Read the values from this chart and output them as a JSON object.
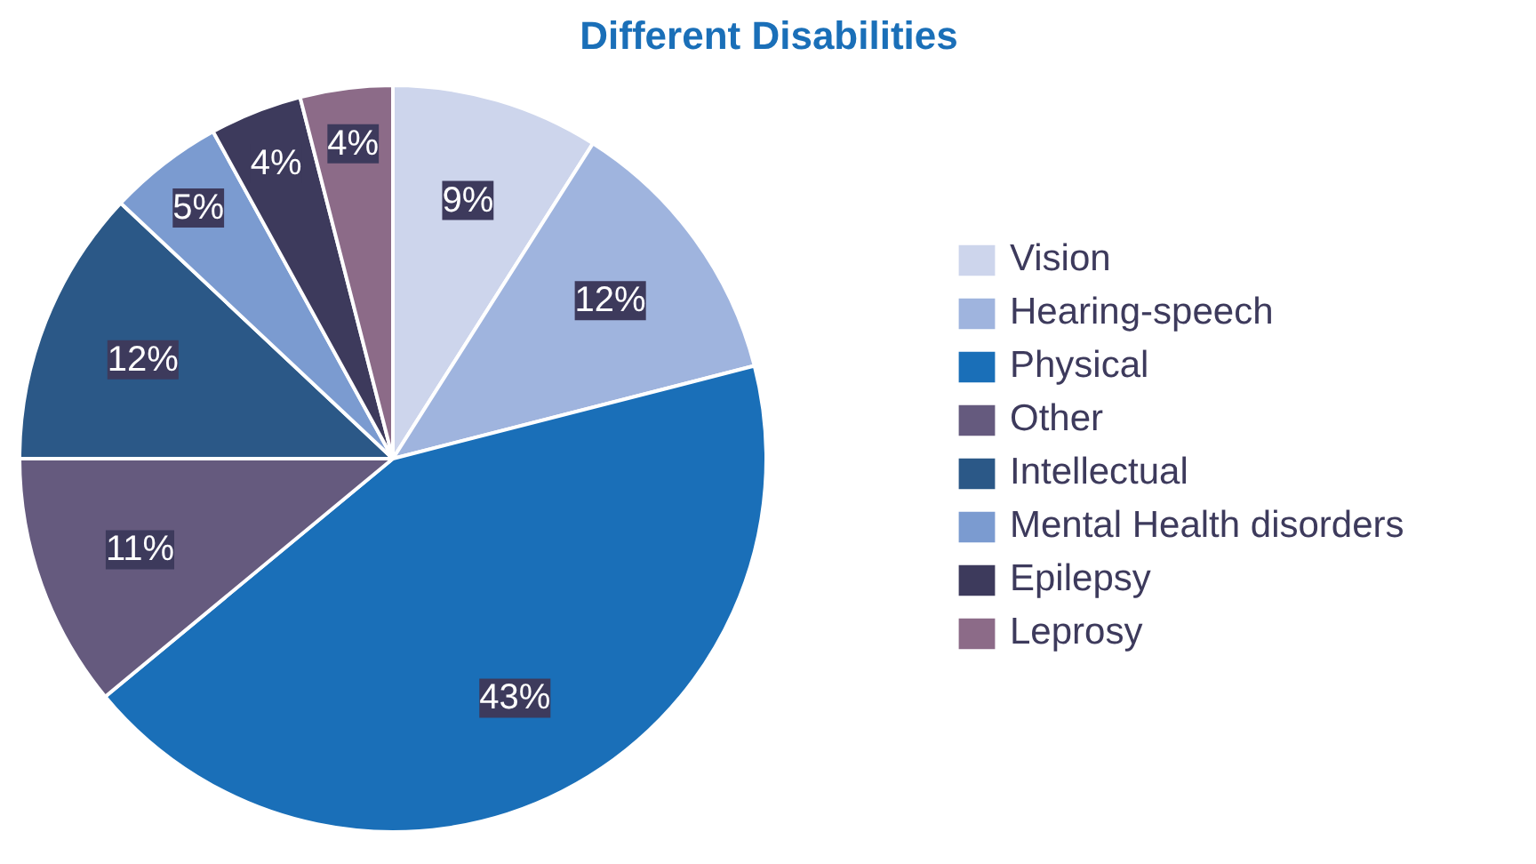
{
  "chart_data": {
    "type": "pie",
    "title": "Different Disabilities",
    "categories": [
      "Vision",
      "Hearing-speech",
      "Physical",
      "Other",
      "Intellectual",
      "Mental Health disorders",
      "Epilepsy",
      "Leprosy"
    ],
    "values": [
      9,
      12,
      43,
      11,
      12,
      5,
      4,
      4
    ],
    "colors": [
      "#cdd5ec",
      "#9fb4de",
      "#1a6fb8",
      "#655a7e",
      "#2b5887",
      "#7b9bd0",
      "#3d3a5c",
      "#8c6b88"
    ],
    "value_labels": [
      "9%",
      "12%",
      "43%",
      "11%",
      "12%",
      "5%",
      "4%",
      "4%"
    ],
    "legend": "right"
  }
}
